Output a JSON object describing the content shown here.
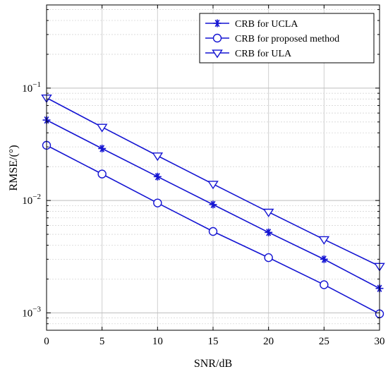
{
  "chart_data": {
    "type": "line",
    "title": "",
    "xlabel": "SNR/dB",
    "ylabel": "RMSE/(°)",
    "x": [
      0,
      5,
      10,
      15,
      20,
      25,
      30
    ],
    "xlim": [
      0,
      30
    ],
    "ylim": [
      0.0007,
      0.55
    ],
    "yscale": "log",
    "x_ticks": [
      "0",
      "5",
      "10",
      "15",
      "20",
      "25",
      "30"
    ],
    "y_ticks": [
      {
        "value": 0.001,
        "base": "10",
        "exp": "−3"
      },
      {
        "value": 0.01,
        "base": "10",
        "exp": "−2"
      },
      {
        "value": 0.1,
        "base": "10",
        "exp": "−1"
      }
    ],
    "grid": true,
    "legend_position": "top-right",
    "line_color": "#1414d2",
    "series": [
      {
        "name": "CRB for UCLA",
        "marker": "star",
        "values": [
          0.052,
          0.029,
          0.0163,
          0.0092,
          0.0052,
          0.003,
          0.00165
        ]
      },
      {
        "name": "CRB for proposed method",
        "marker": "circle",
        "values": [
          0.031,
          0.0172,
          0.0095,
          0.0053,
          0.0031,
          0.00178,
          0.00098
        ]
      },
      {
        "name": "CRB for ULA",
        "marker": "triangle-down",
        "values": [
          0.082,
          0.045,
          0.025,
          0.014,
          0.0079,
          0.0045,
          0.0026
        ]
      }
    ]
  }
}
